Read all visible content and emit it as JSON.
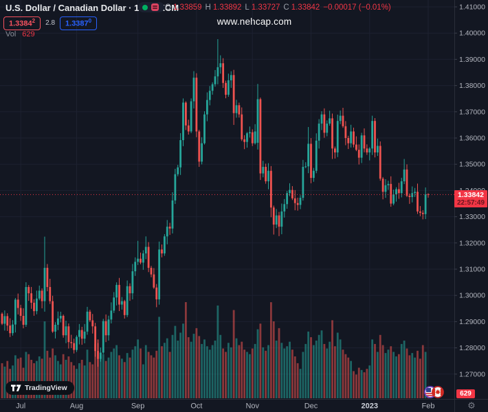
{
  "header": {
    "symbol_title": "U.S. Dollar / Canadian Dollar · 1D · FXCM",
    "ohlc": {
      "o_label": "O",
      "o_value": "1.33859",
      "h_label": "H",
      "h_value": "1.33892",
      "l_label": "L",
      "l_value": "1.33727",
      "c_label": "C",
      "c_value": "1.33842",
      "change": "−0.00017 (−0.01%)"
    },
    "sell_button": {
      "price": "1.3384",
      "sup": "2"
    },
    "spread": "2.8",
    "buy_button": {
      "price": "1.3387",
      "sup": "0"
    },
    "vol_label": "Vol",
    "vol_value": "629"
  },
  "watermark": "www.nehcap.com",
  "price_axis": {
    "labels": [
      "1.41000",
      "1.40000",
      "1.39000",
      "1.38000",
      "1.37000",
      "1.36000",
      "1.35000",
      "1.34000",
      "1.33000",
      "1.32000",
      "1.31000",
      "1.30000",
      "1.29000",
      "1.28000",
      "1.27000"
    ],
    "last_price": "1.33842",
    "countdown": "22:57:49",
    "volume_value": "629"
  },
  "time_axis": {
    "labels": [
      "Jul",
      "Aug",
      "Sep",
      "Oct",
      "Nov",
      "Dec",
      "2023",
      "Feb"
    ]
  },
  "logo_text": "TradingView",
  "colors": {
    "background": "#131722",
    "up": "#26a69a",
    "down": "#ef5350",
    "accent_red": "#f23645",
    "sell_red": "#f7525f",
    "buy_blue": "#2962ff",
    "axis_text": "#b2b5be",
    "muted_text": "#787b86",
    "grid": "#1d2130",
    "axis_border": "#2a2e39",
    "status_green": "#00b061"
  },
  "chart_data": {
    "type": "candlestick",
    "interval": "1D",
    "price_min": 1.27,
    "price_max": 1.41,
    "grid_step": 0.01,
    "legend_note": "volume study colored by candle direction, current volume 629",
    "months": [
      {
        "label": "Jul",
        "index": 7
      },
      {
        "label": "Aug",
        "index": 28
      },
      {
        "label": "Sep",
        "index": 51
      },
      {
        "label": "Oct",
        "index": 73
      },
      {
        "label": "Nov",
        "index": 94
      },
      {
        "label": "Dec",
        "index": 116
      },
      {
        "label": "2023",
        "index": 138
      },
      {
        "label": "Feb",
        "index": 160
      }
    ],
    "closes": [
      1.2892,
      1.2921,
      1.2885,
      1.2856,
      1.2889,
      1.2984,
      1.2952,
      1.2922,
      1.2888,
      1.3032,
      1.3008,
      1.2972,
      1.294,
      1.2988,
      1.3018,
      1.2978,
      1.3105,
      1.3032,
      1.2978,
      1.2862,
      1.2888,
      1.2912,
      1.2922,
      1.2848,
      1.2882,
      1.2822,
      1.2818,
      1.2792,
      1.2842,
      1.2868,
      1.2835,
      1.2862,
      1.2938,
      1.2905,
      1.2882,
      1.2788,
      1.2758,
      1.2782,
      1.2902,
      1.2848,
      1.2908,
      1.2942,
      1.2992,
      1.304,
      1.2965,
      1.2978,
      1.2925,
      1.3035,
      1.3008,
      1.3092,
      1.3128,
      1.314,
      1.3125,
      1.316,
      1.3185,
      1.3105,
      1.308,
      1.303,
      1.2985,
      1.3175,
      1.316,
      1.3225,
      1.3262,
      1.3255,
      1.3362,
      1.3462,
      1.3488,
      1.3592,
      1.3735,
      1.3648,
      1.3625,
      1.374,
      1.383,
      1.3625,
      1.351,
      1.358,
      1.369,
      1.3745,
      1.378,
      1.3805,
      1.3835,
      1.387,
      1.3885,
      1.381,
      1.3765,
      1.382,
      1.384,
      1.3695,
      1.3725,
      1.369,
      1.3595,
      1.3585,
      1.3618,
      1.3622,
      1.358,
      1.3625,
      1.3748,
      1.3465,
      1.349,
      1.3435,
      1.3475,
      1.3335,
      1.327,
      1.3305,
      1.3262,
      1.332,
      1.3348,
      1.339,
      1.3402,
      1.337,
      1.3352,
      1.3345,
      1.3372,
      1.349,
      1.3492,
      1.3578,
      1.3448,
      1.3475,
      1.359,
      1.3655,
      1.369,
      1.362,
      1.3655,
      1.3675,
      1.356,
      1.3545,
      1.3665,
      1.3685,
      1.3645,
      1.36,
      1.358,
      1.3625,
      1.3575,
      1.3555,
      1.3525,
      1.361,
      1.356,
      1.3545,
      1.356,
      1.3665,
      1.3545,
      1.357,
      1.3445,
      1.3395,
      1.342,
      1.3425,
      1.335,
      1.3385,
      1.3405,
      1.339,
      1.3435,
      1.348,
      1.338,
      1.3375,
      1.339,
      1.3395,
      1.332,
      1.3315,
      1.331,
      1.3385,
      1.33842
    ],
    "volumes": [
      3100,
      2800,
      3300,
      2600,
      2900,
      3800,
      3500,
      3600,
      2700,
      4100,
      3900,
      3400,
      3100,
      3300,
      3700,
      3500,
      6800,
      4200,
      3600,
      4400,
      3800,
      3300,
      3000,
      3900,
      3400,
      3700,
      3200,
      2900,
      2600,
      3100,
      3400,
      2900,
      4300,
      3200,
      3000,
      4800,
      5200,
      3700,
      3900,
      3300,
      3600,
      4100,
      4400,
      4700,
      3800,
      3500,
      3200,
      4000,
      3600,
      4300,
      4600,
      5200,
      4400,
      3000,
      4700,
      4100,
      3800,
      3600,
      4200,
      7200,
      4600,
      4900,
      5300,
      4100,
      5600,
      6400,
      5100,
      5800,
      6600,
      8500,
      5400,
      5000,
      5700,
      6200,
      5500,
      4800,
      5200,
      4600,
      4300,
      4700,
      5100,
      8200,
      5600,
      4400,
      4100,
      4900,
      4500,
      7800,
      5300,
      4700,
      5000,
      4300,
      4100,
      3900,
      4400,
      4800,
      6100,
      6600,
      4500,
      4200,
      4700,
      8493,
      6800,
      5100,
      6200,
      4900,
      4400,
      4600,
      5000,
      4300,
      3700,
      3100,
      2600,
      4100,
      4800,
      5900,
      5400,
      4700,
      5100,
      5600,
      6000,
      4800,
      4400,
      5000,
      6900,
      4600,
      5800,
      5200,
      4300,
      3900,
      3600,
      3300,
      2400,
      2100,
      2700,
      2500,
      2300,
      2600,
      2900,
      5200,
      4800,
      4100,
      5600,
      4700,
      4000,
      4300,
      4600,
      4100,
      3700,
      3900,
      4800,
      5100,
      4400,
      3800,
      4000,
      3600,
      4200,
      3500,
      4700,
      4100,
      629
    ],
    "open_overrides": {
      "0": 1.293,
      "96": 1.3582,
      "160": 1.33859
    },
    "high_overrides": {
      "16": 1.3224,
      "51": 1.3208,
      "54": 1.3225,
      "72": 1.3855,
      "81": 1.3977,
      "87": 1.386,
      "96": 1.3806,
      "115": 1.3642,
      "120": 1.3702,
      "127": 1.3705,
      "139": 1.3685,
      "151": 1.352,
      "160": 1.33892
    },
    "low_overrides": {
      "16": 1.2938,
      "36": 1.2728,
      "58": 1.2955,
      "74": 1.349,
      "87": 1.365,
      "97": 1.344,
      "101": 1.3298,
      "102": 1.3232,
      "104": 1.3226,
      "124": 1.352,
      "157": 1.3302,
      "158": 1.329,
      "160": 1.33727
    },
    "last_price": 1.33842
  }
}
